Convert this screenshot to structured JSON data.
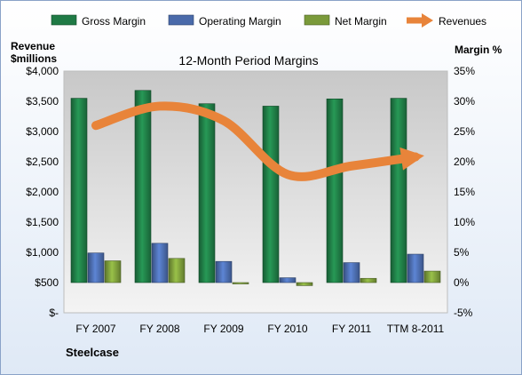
{
  "chart_data": {
    "type": "bar",
    "title": "12-Month Period Margins",
    "company": "Steelcase",
    "categories": [
      "FY 2007",
      "FY 2008",
      "FY 2009",
      "FY 2010",
      "FY 2011",
      "TTM 8-2011"
    ],
    "left_axis": {
      "label_line1": "Revenue",
      "label_line2": "$millions",
      "ticks": [
        "$4,000",
        "$3,500",
        "$3,000",
        "$2,500",
        "$2,000",
        "$1,500",
        "$1,000",
        "$500",
        "$-"
      ],
      "range": [
        0,
        4000
      ]
    },
    "right_axis": {
      "label": "Margin %",
      "ticks": [
        "35%",
        "30%",
        "25%",
        "20%",
        "15%",
        "10%",
        "5%",
        "0%",
        "-5%"
      ],
      "range": [
        -5,
        35
      ]
    },
    "series": [
      {
        "name": "Gross Margin",
        "axis": "right",
        "color": "#1f7a45",
        "values": [
          30.5,
          31.8,
          29.6,
          29.2,
          30.4,
          30.5
        ]
      },
      {
        "name": "Operating Margin",
        "axis": "right",
        "color": "#4a6aaa",
        "values": [
          4.9,
          6.5,
          3.5,
          0.8,
          3.3,
          4.7
        ]
      },
      {
        "name": "Net Margin",
        "axis": "right",
        "color": "#7a9a3a",
        "values": [
          3.6,
          4.0,
          -0.2,
          -0.5,
          0.7,
          1.9
        ]
      },
      {
        "name": "Revenues",
        "axis": "left",
        "color": "#e8843a",
        "values": [
          3100,
          3420,
          3180,
          2290,
          2430,
          2580
        ]
      }
    ],
    "legend_position": "top",
    "grid": false
  }
}
